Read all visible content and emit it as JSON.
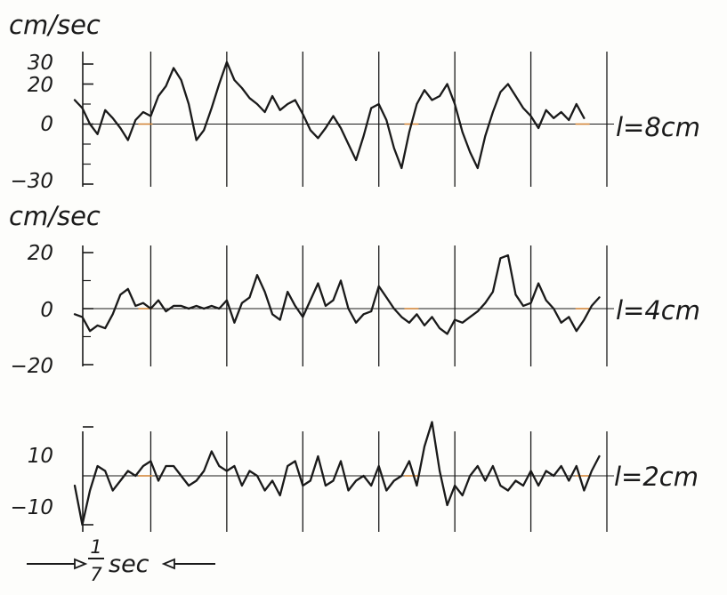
{
  "chart_data": [
    {
      "type": "line",
      "ylabel": "cm/sec",
      "yticks": [
        "30",
        "20",
        "0",
        "−30"
      ],
      "ytick_values": [
        30,
        20,
        0,
        -30
      ],
      "ylim": [
        -30,
        30
      ],
      "series": [
        {
          "name": "l=8cm",
          "points": [
            [
              0,
              12
            ],
            [
              0.02,
              8
            ],
            [
              0.04,
              0
            ],
            [
              0.06,
              -5
            ],
            [
              0.08,
              7
            ],
            [
              0.1,
              3
            ],
            [
              0.12,
              -2
            ],
            [
              0.14,
              -8
            ],
            [
              0.16,
              2
            ],
            [
              0.18,
              6
            ],
            [
              0.2,
              4
            ],
            [
              0.22,
              14
            ],
            [
              0.24,
              19
            ],
            [
              0.26,
              28
            ],
            [
              0.28,
              22
            ],
            [
              0.3,
              10
            ],
            [
              0.32,
              -8
            ],
            [
              0.34,
              -3
            ],
            [
              0.36,
              8
            ],
            [
              0.38,
              20
            ],
            [
              0.4,
              31
            ],
            [
              0.42,
              22
            ],
            [
              0.44,
              18
            ],
            [
              0.46,
              13
            ],
            [
              0.48,
              10
            ],
            [
              0.5,
              6
            ],
            [
              0.52,
              14
            ],
            [
              0.54,
              7
            ],
            [
              0.56,
              10
            ],
            [
              0.58,
              12
            ],
            [
              0.6,
              5
            ],
            [
              0.62,
              -3
            ],
            [
              0.64,
              -7
            ],
            [
              0.66,
              -2
            ],
            [
              0.68,
              4
            ],
            [
              0.7,
              -2
            ],
            [
              0.72,
              -10
            ],
            [
              0.74,
              -18
            ],
            [
              0.76,
              -6
            ],
            [
              0.78,
              8
            ],
            [
              0.8,
              10
            ],
            [
              0.82,
              2
            ],
            [
              0.84,
              -12
            ],
            [
              0.86,
              -22
            ],
            [
              0.88,
              -4
            ],
            [
              0.9,
              10
            ],
            [
              0.92,
              17
            ],
            [
              0.94,
              12
            ],
            [
              0.96,
              14
            ],
            [
              0.98,
              20
            ],
            [
              1.0,
              10
            ],
            [
              1.02,
              -4
            ],
            [
              1.04,
              -14
            ],
            [
              1.06,
              -22
            ],
            [
              1.08,
              -6
            ],
            [
              1.1,
              6
            ],
            [
              1.12,
              16
            ],
            [
              1.14,
              20
            ],
            [
              1.16,
              14
            ],
            [
              1.18,
              8
            ],
            [
              1.2,
              4
            ],
            [
              1.22,
              -2
            ],
            [
              1.24,
              7
            ],
            [
              1.26,
              3
            ],
            [
              1.28,
              6
            ],
            [
              1.3,
              2
            ],
            [
              1.32,
              10
            ],
            [
              1.34,
              3
            ]
          ]
        }
      ],
      "curve_label": "l=8cm"
    },
    {
      "type": "line",
      "ylabel": "cm/sec",
      "yticks": [
        "20",
        "0",
        "−20"
      ],
      "ytick_values": [
        20,
        0,
        -20
      ],
      "ylim": [
        -20,
        20
      ],
      "series": [
        {
          "name": "l=4cm",
          "points": [
            [
              0,
              -2
            ],
            [
              0.02,
              -3
            ],
            [
              0.04,
              -8
            ],
            [
              0.06,
              -6
            ],
            [
              0.08,
              -7
            ],
            [
              0.1,
              -2
            ],
            [
              0.12,
              5
            ],
            [
              0.14,
              7
            ],
            [
              0.16,
              1
            ],
            [
              0.18,
              2
            ],
            [
              0.2,
              0
            ],
            [
              0.22,
              3
            ],
            [
              0.24,
              -1
            ],
            [
              0.26,
              1
            ],
            [
              0.28,
              1
            ],
            [
              0.3,
              0
            ],
            [
              0.32,
              1
            ],
            [
              0.34,
              0
            ],
            [
              0.36,
              1
            ],
            [
              0.38,
              0
            ],
            [
              0.4,
              3
            ],
            [
              0.42,
              -5
            ],
            [
              0.44,
              2
            ],
            [
              0.46,
              4
            ],
            [
              0.48,
              12
            ],
            [
              0.5,
              6
            ],
            [
              0.52,
              -2
            ],
            [
              0.54,
              -4
            ],
            [
              0.56,
              6
            ],
            [
              0.58,
              1
            ],
            [
              0.6,
              -3
            ],
            [
              0.62,
              3
            ],
            [
              0.64,
              9
            ],
            [
              0.66,
              1
            ],
            [
              0.68,
              3
            ],
            [
              0.7,
              10
            ],
            [
              0.72,
              0
            ],
            [
              0.74,
              -5
            ],
            [
              0.76,
              -2
            ],
            [
              0.78,
              -1
            ],
            [
              0.8,
              8
            ],
            [
              0.82,
              4
            ],
            [
              0.84,
              0
            ],
            [
              0.86,
              -3
            ],
            [
              0.88,
              -5
            ],
            [
              0.9,
              -2
            ],
            [
              0.92,
              -6
            ],
            [
              0.94,
              -3
            ],
            [
              0.96,
              -7
            ],
            [
              0.98,
              -9
            ],
            [
              1.0,
              -4
            ],
            [
              1.02,
              -5
            ],
            [
              1.04,
              -3
            ],
            [
              1.06,
              -1
            ],
            [
              1.08,
              2
            ],
            [
              1.1,
              6
            ],
            [
              1.12,
              18
            ],
            [
              1.14,
              19
            ],
            [
              1.16,
              5
            ],
            [
              1.18,
              1
            ],
            [
              1.2,
              2
            ],
            [
              1.22,
              9
            ],
            [
              1.24,
              3
            ],
            [
              1.26,
              0
            ],
            [
              1.28,
              -5
            ],
            [
              1.3,
              -3
            ],
            [
              1.32,
              -8
            ],
            [
              1.34,
              -4
            ],
            [
              1.36,
              1
            ],
            [
              1.38,
              4
            ]
          ]
        }
      ],
      "curve_label": "l=4cm"
    },
    {
      "type": "line",
      "ylabel": "",
      "yticks": [
        "10",
        "−10"
      ],
      "ytick_values": [
        10,
        -10
      ],
      "ylim": [
        -10,
        10
      ],
      "series": [
        {
          "name": "l=2cm",
          "points": [
            [
              0,
              -2
            ],
            [
              0.02,
              -10
            ],
            [
              0.04,
              -3
            ],
            [
              0.06,
              2
            ],
            [
              0.08,
              1
            ],
            [
              0.1,
              -3
            ],
            [
              0.12,
              -1
            ],
            [
              0.14,
              1
            ],
            [
              0.16,
              0
            ],
            [
              0.18,
              2
            ],
            [
              0.2,
              3
            ],
            [
              0.22,
              -1
            ],
            [
              0.24,
              2
            ],
            [
              0.26,
              2
            ],
            [
              0.28,
              0
            ],
            [
              0.3,
              -2
            ],
            [
              0.32,
              -1
            ],
            [
              0.34,
              1
            ],
            [
              0.36,
              5
            ],
            [
              0.38,
              2
            ],
            [
              0.4,
              1
            ],
            [
              0.42,
              2
            ],
            [
              0.44,
              -2
            ],
            [
              0.46,
              1
            ],
            [
              0.48,
              0
            ],
            [
              0.5,
              -3
            ],
            [
              0.52,
              -1
            ],
            [
              0.54,
              -4
            ],
            [
              0.56,
              2
            ],
            [
              0.58,
              3
            ],
            [
              0.6,
              -2
            ],
            [
              0.62,
              -1
            ],
            [
              0.64,
              4
            ],
            [
              0.66,
              -2
            ],
            [
              0.68,
              -1
            ],
            [
              0.7,
              3
            ],
            [
              0.72,
              -3
            ],
            [
              0.74,
              -1
            ],
            [
              0.76,
              0
            ],
            [
              0.78,
              -2
            ],
            [
              0.8,
              2
            ],
            [
              0.82,
              -3
            ],
            [
              0.84,
              -1
            ],
            [
              0.86,
              0
            ],
            [
              0.88,
              3
            ],
            [
              0.9,
              -2
            ],
            [
              0.92,
              6
            ],
            [
              0.94,
              11
            ],
            [
              0.96,
              1
            ],
            [
              0.98,
              -6
            ],
            [
              1.0,
              -2
            ],
            [
              1.02,
              -4
            ],
            [
              1.04,
              0
            ],
            [
              1.06,
              2
            ],
            [
              1.08,
              -1
            ],
            [
              1.1,
              2
            ],
            [
              1.12,
              -2
            ],
            [
              1.14,
              -3
            ],
            [
              1.16,
              -1
            ],
            [
              1.18,
              -2
            ],
            [
              1.2,
              1
            ],
            [
              1.22,
              -2
            ],
            [
              1.24,
              1
            ],
            [
              1.26,
              0
            ],
            [
              1.28,
              2
            ],
            [
              1.3,
              -1
            ],
            [
              1.32,
              2
            ],
            [
              1.34,
              -3
            ],
            [
              1.36,
              1
            ],
            [
              1.38,
              4
            ]
          ]
        }
      ],
      "curve_label": "l=2cm"
    }
  ],
  "time_scale": {
    "numerator": "1",
    "denominator": "7",
    "unit": "sec"
  },
  "colors": {
    "ink": "#1a1a1a",
    "zero_marks": "#d08030"
  }
}
